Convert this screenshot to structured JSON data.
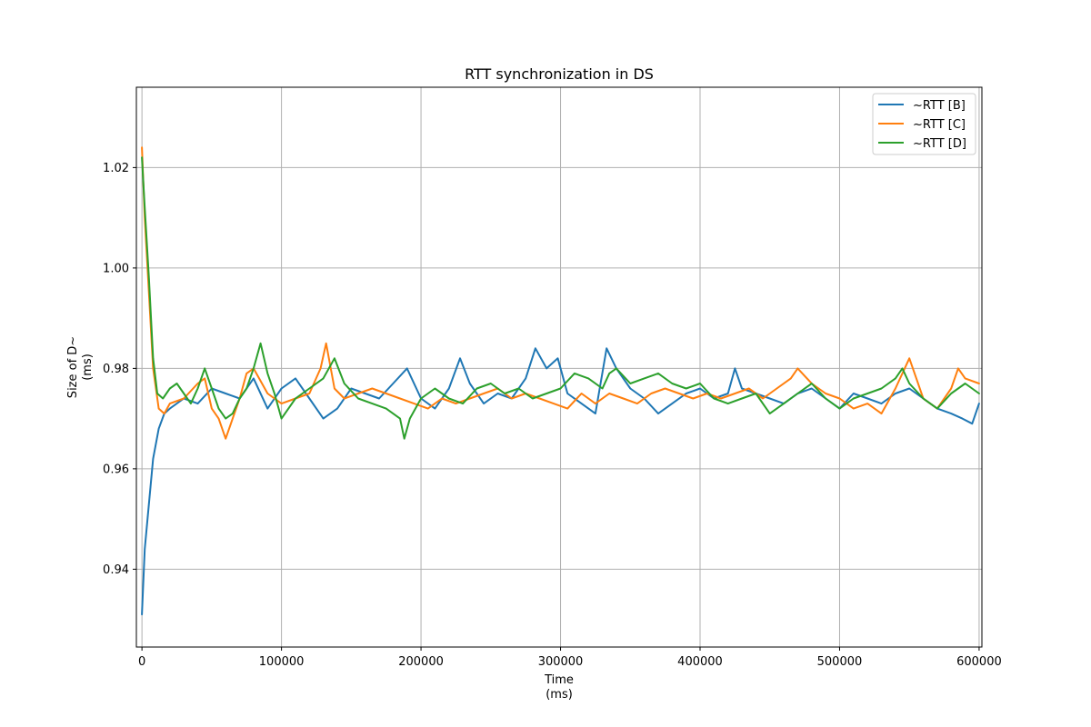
{
  "chart_data": {
    "type": "line",
    "title": "RTT synchronization in DS",
    "xlabel": [
      "Time",
      "(ms)"
    ],
    "ylabel": [
      "Size of D~",
      "(ms)"
    ],
    "xlim": [
      -4000,
      602000
    ],
    "ylim": [
      0.9245,
      1.036
    ],
    "x_ticks": [
      0,
      100000,
      200000,
      300000,
      400000,
      500000,
      600000
    ],
    "x_tick_labels": [
      "0",
      "100000",
      "200000",
      "300000",
      "400000",
      "500000",
      "600000"
    ],
    "y_ticks": [
      0.94,
      0.96,
      0.98,
      1.0,
      1.02
    ],
    "y_tick_labels": [
      "0.94",
      "0.96",
      "0.98",
      "1.00",
      "1.02"
    ],
    "grid": true,
    "legend": "top-right",
    "series": [
      {
        "name": "~RTT [B]",
        "color": "#1f77b4",
        "x": [
          0,
          2000,
          5000,
          8000,
          12000,
          16000,
          20000,
          30000,
          40000,
          50000,
          60000,
          70000,
          80000,
          90000,
          100000,
          110000,
          120000,
          130000,
          140000,
          150000,
          160000,
          170000,
          180000,
          190000,
          200000,
          210000,
          220000,
          228000,
          235000,
          245000,
          255000,
          265000,
          275000,
          282000,
          290000,
          298000,
          305000,
          315000,
          325000,
          333000,
          340000,
          350000,
          360000,
          370000,
          380000,
          390000,
          400000,
          410000,
          420000,
          425000,
          430000,
          440000,
          450000,
          460000,
          470000,
          480000,
          490000,
          500000,
          510000,
          520000,
          530000,
          540000,
          550000,
          560000,
          570000,
          580000,
          588000,
          595000,
          600000
        ],
        "y": [
          0.931,
          0.944,
          0.953,
          0.962,
          0.968,
          0.971,
          0.972,
          0.974,
          0.973,
          0.976,
          0.975,
          0.974,
          0.978,
          0.972,
          0.976,
          0.978,
          0.974,
          0.97,
          0.972,
          0.976,
          0.975,
          0.974,
          0.977,
          0.98,
          0.974,
          0.972,
          0.976,
          0.982,
          0.977,
          0.973,
          0.975,
          0.974,
          0.978,
          0.984,
          0.98,
          0.982,
          0.975,
          0.973,
          0.971,
          0.984,
          0.98,
          0.976,
          0.974,
          0.971,
          0.973,
          0.975,
          0.976,
          0.974,
          0.975,
          0.98,
          0.976,
          0.975,
          0.974,
          0.973,
          0.975,
          0.976,
          0.974,
          0.972,
          0.975,
          0.974,
          0.973,
          0.975,
          0.976,
          0.974,
          0.972,
          0.971,
          0.97,
          0.969,
          0.973
        ]
      },
      {
        "name": "~RTT [C]",
        "color": "#ff7f0e",
        "x": [
          0,
          2000,
          5000,
          8000,
          12000,
          16000,
          20000,
          30000,
          40000,
          45000,
          50000,
          55000,
          60000,
          65000,
          70000,
          75000,
          80000,
          90000,
          100000,
          110000,
          120000,
          128000,
          132000,
          138000,
          145000,
          155000,
          165000,
          175000,
          185000,
          195000,
          205000,
          215000,
          225000,
          235000,
          245000,
          255000,
          265000,
          275000,
          285000,
          295000,
          305000,
          315000,
          325000,
          335000,
          345000,
          355000,
          365000,
          375000,
          385000,
          395000,
          405000,
          415000,
          425000,
          435000,
          445000,
          455000,
          465000,
          470000,
          480000,
          490000,
          500000,
          510000,
          520000,
          530000,
          540000,
          550000,
          555000,
          560000,
          570000,
          580000,
          585000,
          590000,
          600000
        ],
        "y": [
          1.024,
          1.01,
          0.995,
          0.98,
          0.972,
          0.971,
          0.973,
          0.974,
          0.977,
          0.978,
          0.972,
          0.97,
          0.966,
          0.97,
          0.974,
          0.979,
          0.98,
          0.975,
          0.973,
          0.974,
          0.975,
          0.98,
          0.985,
          0.976,
          0.974,
          0.975,
          0.976,
          0.975,
          0.974,
          0.973,
          0.972,
          0.974,
          0.973,
          0.974,
          0.975,
          0.976,
          0.974,
          0.975,
          0.974,
          0.973,
          0.972,
          0.975,
          0.973,
          0.975,
          0.974,
          0.973,
          0.975,
          0.976,
          0.975,
          0.974,
          0.975,
          0.974,
          0.975,
          0.976,
          0.974,
          0.976,
          0.978,
          0.98,
          0.977,
          0.975,
          0.974,
          0.972,
          0.973,
          0.971,
          0.976,
          0.982,
          0.978,
          0.974,
          0.972,
          0.976,
          0.98,
          0.978,
          0.977
        ]
      },
      {
        "name": "~RTT [D]",
        "color": "#2ca02c",
        "x": [
          0,
          2000,
          5000,
          8000,
          11000,
          15000,
          20000,
          25000,
          30000,
          35000,
          40000,
          45000,
          50000,
          55000,
          60000,
          65000,
          70000,
          75000,
          80000,
          85000,
          90000,
          95000,
          100000,
          110000,
          120000,
          130000,
          138000,
          145000,
          155000,
          165000,
          175000,
          185000,
          188000,
          192000,
          200000,
          210000,
          220000,
          230000,
          240000,
          250000,
          260000,
          270000,
          280000,
          290000,
          300000,
          310000,
          320000,
          330000,
          335000,
          340000,
          350000,
          360000,
          370000,
          380000,
          390000,
          400000,
          410000,
          420000,
          430000,
          440000,
          450000,
          460000,
          470000,
          480000,
          490000,
          500000,
          510000,
          520000,
          530000,
          540000,
          545000,
          550000,
          560000,
          570000,
          580000,
          590000,
          600000
        ],
        "y": [
          1.022,
          1.012,
          0.998,
          0.982,
          0.975,
          0.974,
          0.976,
          0.977,
          0.975,
          0.973,
          0.976,
          0.98,
          0.976,
          0.972,
          0.97,
          0.971,
          0.974,
          0.976,
          0.98,
          0.985,
          0.979,
          0.975,
          0.97,
          0.974,
          0.976,
          0.978,
          0.982,
          0.977,
          0.974,
          0.973,
          0.972,
          0.97,
          0.966,
          0.97,
          0.974,
          0.976,
          0.974,
          0.973,
          0.976,
          0.977,
          0.975,
          0.976,
          0.974,
          0.975,
          0.976,
          0.979,
          0.978,
          0.976,
          0.979,
          0.98,
          0.977,
          0.978,
          0.979,
          0.977,
          0.976,
          0.977,
          0.974,
          0.973,
          0.974,
          0.975,
          0.971,
          0.973,
          0.975,
          0.977,
          0.974,
          0.972,
          0.974,
          0.975,
          0.976,
          0.978,
          0.98,
          0.977,
          0.974,
          0.972,
          0.975,
          0.977,
          0.975
        ]
      }
    ]
  }
}
